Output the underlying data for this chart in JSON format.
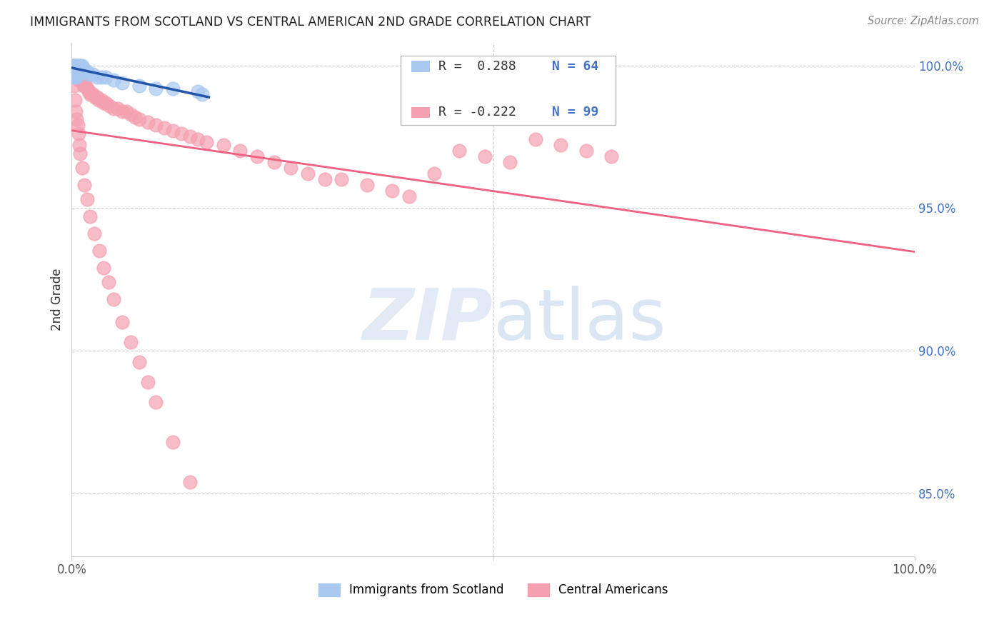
{
  "title": "IMMIGRANTS FROM SCOTLAND VS CENTRAL AMERICAN 2ND GRADE CORRELATION CHART",
  "source": "Source: ZipAtlas.com",
  "ylabel": "2nd Grade",
  "xlim": [
    0.0,
    1.0
  ],
  "ylim": [
    0.828,
    1.008
  ],
  "yticks": [
    0.85,
    0.9,
    0.95,
    1.0
  ],
  "ytick_labels": [
    "85.0%",
    "90.0%",
    "95.0%",
    "100.0%"
  ],
  "scotland_color": "#A8C8F0",
  "central_american_color": "#F4A0B0",
  "scotland_line_color": "#2255AA",
  "central_american_line_color": "#F06080",
  "scotland_x": [
    0.001,
    0.001,
    0.001,
    0.001,
    0.001,
    0.002,
    0.002,
    0.002,
    0.002,
    0.003,
    0.003,
    0.003,
    0.003,
    0.003,
    0.004,
    0.004,
    0.004,
    0.004,
    0.005,
    0.005,
    0.005,
    0.005,
    0.006,
    0.006,
    0.006,
    0.007,
    0.007,
    0.007,
    0.008,
    0.008,
    0.009,
    0.009,
    0.01,
    0.01,
    0.011,
    0.012,
    0.012,
    0.013,
    0.014,
    0.015,
    0.016,
    0.018,
    0.02,
    0.025,
    0.03,
    0.035,
    0.04,
    0.05,
    0.06,
    0.08,
    0.1,
    0.12,
    0.15,
    0.155,
    0.01,
    0.008,
    0.006,
    0.004,
    0.003,
    0.002,
    0.002,
    0.003,
    0.004,
    0.005
  ],
  "scotland_y": [
    1.0,
    1.0,
    1.0,
    1.0,
    0.998,
    1.0,
    1.0,
    0.999,
    0.998,
    1.0,
    1.0,
    0.999,
    0.999,
    0.998,
    1.0,
    1.0,
    0.999,
    0.998,
    1.0,
    1.0,
    0.999,
    0.998,
    1.0,
    1.0,
    0.999,
    1.0,
    0.999,
    0.998,
    1.0,
    0.999,
    1.0,
    0.999,
    1.0,
    0.999,
    0.999,
    1.0,
    0.999,
    0.999,
    0.999,
    0.998,
    0.998,
    0.998,
    0.997,
    0.997,
    0.996,
    0.996,
    0.996,
    0.995,
    0.994,
    0.993,
    0.992,
    0.992,
    0.991,
    0.99,
    0.999,
    0.997,
    0.996,
    0.997,
    0.997,
    0.998,
    0.999,
    0.996,
    0.997,
    0.998
  ],
  "central_x": [
    0.001,
    0.001,
    0.002,
    0.002,
    0.003,
    0.003,
    0.003,
    0.004,
    0.004,
    0.005,
    0.005,
    0.005,
    0.006,
    0.006,
    0.007,
    0.007,
    0.008,
    0.008,
    0.009,
    0.01,
    0.01,
    0.011,
    0.012,
    0.013,
    0.014,
    0.015,
    0.016,
    0.017,
    0.018,
    0.02,
    0.021,
    0.022,
    0.024,
    0.025,
    0.028,
    0.03,
    0.032,
    0.035,
    0.038,
    0.04,
    0.045,
    0.05,
    0.055,
    0.06,
    0.065,
    0.07,
    0.075,
    0.08,
    0.09,
    0.1,
    0.11,
    0.12,
    0.13,
    0.14,
    0.15,
    0.16,
    0.18,
    0.2,
    0.22,
    0.24,
    0.26,
    0.28,
    0.3,
    0.32,
    0.35,
    0.38,
    0.4,
    0.43,
    0.46,
    0.49,
    0.52,
    0.55,
    0.58,
    0.61,
    0.64,
    0.003,
    0.004,
    0.005,
    0.006,
    0.007,
    0.008,
    0.009,
    0.01,
    0.012,
    0.015,
    0.018,
    0.022,
    0.027,
    0.033,
    0.038,
    0.044,
    0.05,
    0.06,
    0.07,
    0.08,
    0.09,
    0.1,
    0.12,
    0.14
  ],
  "central_y": [
    1.0,
    0.998,
    1.0,
    0.998,
    0.999,
    0.997,
    0.996,
    0.998,
    0.997,
    0.998,
    0.997,
    0.996,
    0.997,
    0.996,
    0.997,
    0.996,
    0.996,
    0.995,
    0.996,
    0.996,
    0.995,
    0.995,
    0.994,
    0.994,
    0.993,
    0.993,
    0.993,
    0.993,
    0.992,
    0.991,
    0.991,
    0.99,
    0.99,
    0.99,
    0.989,
    0.989,
    0.988,
    0.988,
    0.987,
    0.987,
    0.986,
    0.985,
    0.985,
    0.984,
    0.984,
    0.983,
    0.982,
    0.981,
    0.98,
    0.979,
    0.978,
    0.977,
    0.976,
    0.975,
    0.974,
    0.973,
    0.972,
    0.97,
    0.968,
    0.966,
    0.964,
    0.962,
    0.96,
    0.96,
    0.958,
    0.956,
    0.954,
    0.962,
    0.97,
    0.968,
    0.966,
    0.974,
    0.972,
    0.97,
    0.968,
    0.993,
    0.988,
    0.984,
    0.981,
    0.979,
    0.976,
    0.972,
    0.969,
    0.964,
    0.958,
    0.953,
    0.947,
    0.941,
    0.935,
    0.929,
    0.924,
    0.918,
    0.91,
    0.903,
    0.896,
    0.889,
    0.882,
    0.868,
    0.854
  ]
}
